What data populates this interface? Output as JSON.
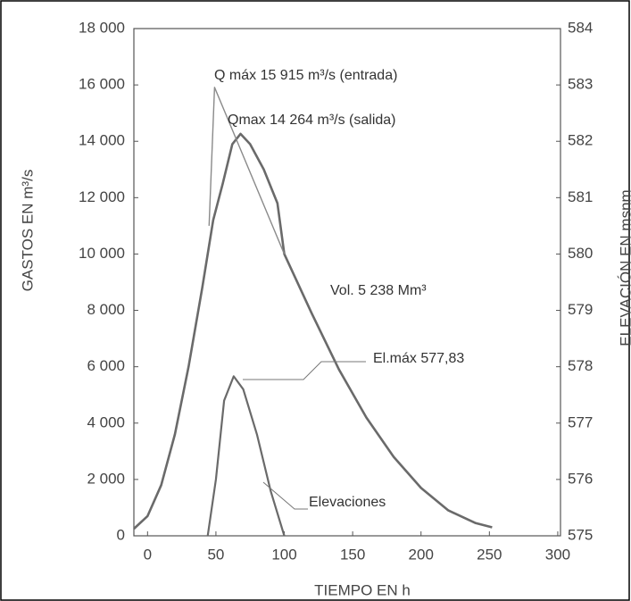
{
  "chart_data": {
    "type": "line",
    "xlabel": "TIEMPO EN h",
    "ylabel": "GASTOS EN m³/s",
    "y2label": "ELEVACIÓN EN msnm",
    "xlim": [
      -10,
      302
    ],
    "xticks": [
      0,
      50,
      100,
      150,
      200,
      250,
      300
    ],
    "ylim": [
      0,
      18000
    ],
    "yticks": [
      0,
      {
        "value": 2000,
        "label": "2 000"
      },
      {
        "value": 4000,
        "label": "4 000"
      },
      {
        "value": 6000,
        "label": "6 000"
      },
      {
        "value": 8000,
        "label": "8 000"
      },
      {
        "value": 10000,
        "label": "10 000"
      },
      {
        "value": 12000,
        "label": "12 000"
      },
      {
        "value": 14000,
        "label": "14 000"
      },
      {
        "value": 16000,
        "label": "16 000"
      },
      {
        "value": 18000,
        "label": "18 000"
      }
    ],
    "y2lim": [
      575,
      584
    ],
    "y2ticks": [
      575,
      576,
      577,
      578,
      579,
      580,
      581,
      582,
      583,
      584
    ],
    "series": [
      {
        "color": "#6a6a6a",
        "x": [
          -10,
          0,
          10,
          20,
          30,
          40,
          48,
          55,
          62,
          68,
          75,
          85,
          95,
          100,
          120,
          140,
          160,
          180,
          200,
          220,
          240,
          252
        ],
        "values": [
          250,
          700,
          1800,
          3600,
          6000,
          8800,
          11200,
          12500,
          13900,
          14264,
          13900,
          13000,
          11800,
          10000,
          7900,
          5900,
          4200,
          2800,
          1700,
          900,
          450,
          300
        ]
      },
      {
        "color": "#8a8a8a",
        "x": [
          45,
          49,
          100
        ],
        "values": [
          11000,
          15915,
          10000
        ]
      },
      {
        "color": "#6a6a6a",
        "axis": "y2",
        "x": [
          44,
          50,
          56,
          63,
          70,
          80,
          90,
          100
        ],
        "values": [
          575,
          576,
          577.4,
          577.83,
          577.6,
          576.8,
          575.8,
          575
        ]
      }
    ],
    "annotations": [
      "Q máx 15 915 m³/s (entrada)",
      "Qmax 14 264 m³/s (salida)",
      "Vol. 5 238 Mm³",
      "El.máx 577,83",
      "Elevaciones"
    ]
  }
}
